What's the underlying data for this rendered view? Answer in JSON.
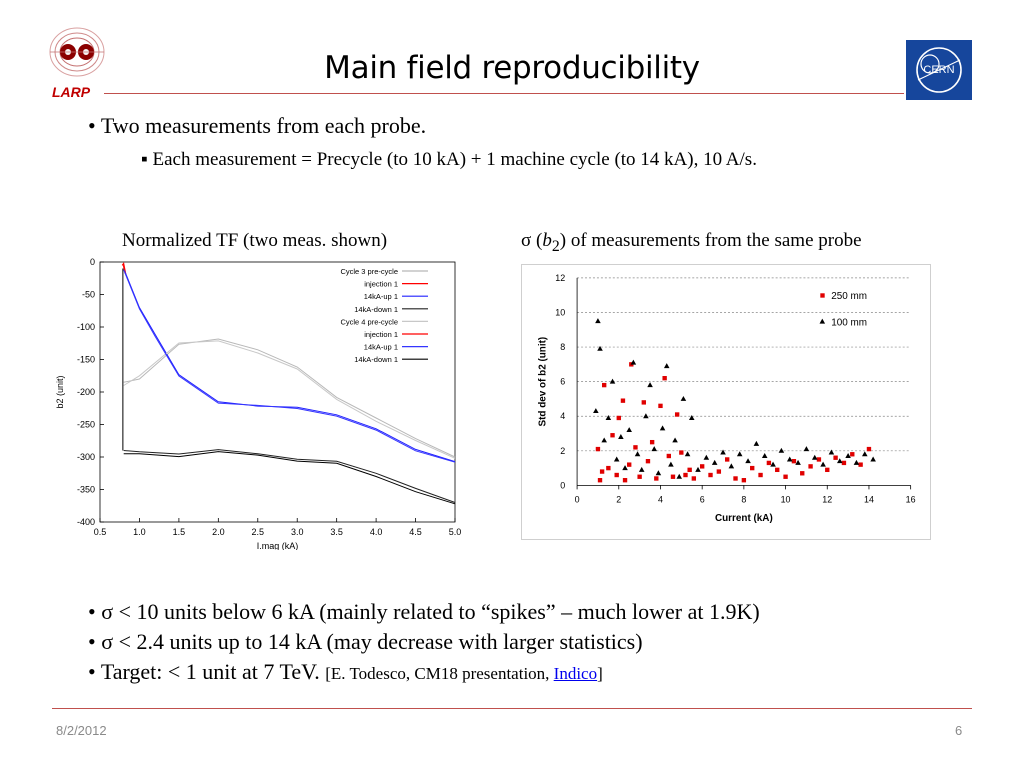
{
  "slide": {
    "title": "Main field reproducibility",
    "logo_text": "LARP",
    "cern_logo_text": "CERN",
    "bullet1": "Two measurements from each probe.",
    "sub_bullet": "Each measurement = Precycle (to 10 kA) + 1 machine cycle (to 14 kA), 10 A/s.",
    "caption_left": "Normalized TF (two meas. shown)",
    "caption_right_prefix": "σ (",
    "caption_right_var": "b",
    "caption_right_sub": "2",
    "caption_right_suffix": ") of measurements from the same probe",
    "bullet2": "σ < 10 units below 6 kA (mainly related to “spikes” – much lower at 1.9K)",
    "bullet3": "σ < 2.4 units up to 14 kA (may decrease with larger statistics)",
    "bullet4": "Target: < 1 unit at 7 TeV. ",
    "ref_prefix": "[E. Todesco, CM18 presentation, ",
    "ref_link": "Indico",
    "ref_suffix": "]",
    "date": "8/2/2012",
    "page_number": "6",
    "colors": {
      "accent_rule": "#c0504d",
      "logo_red": "#c00000",
      "cern_blue": "#16469c"
    }
  },
  "chart_data": [
    {
      "type": "line",
      "xlabel": "I.mag (kA)",
      "ylabel": "b2 (unit)",
      "xlim": [
        0.5,
        5.0
      ],
      "ylim": [
        -400,
        0
      ],
      "xticks": [
        0.5,
        1.0,
        1.5,
        2.0,
        2.5,
        3.0,
        3.5,
        4.0,
        4.5,
        5.0
      ],
      "yticks": [
        0,
        -50,
        -100,
        -150,
        -200,
        -250,
        -300,
        -350,
        -400
      ],
      "legend_position": "top-right",
      "series": [
        {
          "name": "Cycle 3 pre-cycle",
          "color": "#b8b8b8",
          "x": [
            0.8,
            1.0,
            1.5,
            2.0,
            2.5,
            3.0,
            3.5,
            4.0,
            4.5,
            5.0
          ],
          "y": [
            -185,
            -180,
            -130,
            -115,
            -135,
            -165,
            -205,
            -240,
            -275,
            -300
          ]
        },
        {
          "name": "injection 1",
          "color": "#ff0000",
          "x": [
            0.78,
            0.8,
            0.83
          ],
          "y": [
            -5,
            -2,
            -20
          ]
        },
        {
          "name": "14kA-up 1",
          "color": "#2020ff",
          "x": [
            0.8,
            1.0,
            1.2,
            1.5,
            2.0,
            2.5,
            3.0,
            3.5,
            4.0,
            4.5,
            5.0
          ],
          "y": [
            -10,
            -70,
            -115,
            -170,
            -215,
            -225,
            -220,
            -235,
            -260,
            -285,
            -307
          ]
        },
        {
          "name": "14kA-down 1",
          "color": "#222222",
          "x": [
            0.8,
            1.0,
            1.5,
            2.0,
            2.5,
            3.0,
            3.5,
            4.0,
            4.5,
            5.0
          ],
          "y": [
            -290,
            -292,
            -292,
            -292,
            -295,
            -300,
            -310,
            -325,
            -345,
            -370
          ]
        },
        {
          "name": "Cycle 4 pre-cycle",
          "color": "#c8c8c8",
          "x": [
            0.8,
            1.0,
            1.5,
            2.0,
            2.5,
            3.0,
            3.5,
            4.0,
            4.5,
            5.0
          ],
          "y": [
            -190,
            -175,
            -128,
            -118,
            -140,
            -168,
            -208,
            -245,
            -278,
            -302
          ]
        },
        {
          "name": "injection 1",
          "color": "#ff0000",
          "x": [
            0.79,
            0.82
          ],
          "y": [
            -3,
            -18
          ]
        },
        {
          "name": "14kA-up 1",
          "color": "#3535ff",
          "x": [
            0.8,
            1.0,
            1.2,
            1.5,
            2.0,
            2.5,
            3.0,
            3.5,
            4.0,
            4.5,
            5.0
          ],
          "y": [
            -12,
            -72,
            -118,
            -172,
            -217,
            -224,
            -222,
            -237,
            -262,
            -287,
            -308
          ]
        },
        {
          "name": "14kA-down 1",
          "color": "#000000",
          "x": [
            0.8,
            1.0,
            1.5,
            2.0,
            2.5,
            3.0,
            3.5,
            4.0,
            4.5,
            5.0
          ],
          "y": [
            -295,
            -295,
            -296,
            -295,
            -297,
            -303,
            -313,
            -330,
            -350,
            -372
          ]
        }
      ]
    },
    {
      "type": "scatter",
      "xlabel": "Current (kA)",
      "ylabel": "Std dev of b2 (unit)",
      "xlim": [
        0,
        16
      ],
      "ylim": [
        0,
        12
      ],
      "xticks": [
        0,
        2,
        4,
        6,
        8,
        10,
        12,
        14,
        16
      ],
      "yticks": [
        0,
        2,
        4,
        6,
        8,
        10,
        12
      ],
      "grid": true,
      "legend_position": "top-right",
      "series": [
        {
          "name": "250 mm",
          "marker": "square",
          "color": "#e00000",
          "x": [
            1.0,
            1.1,
            1.2,
            1.3,
            1.5,
            1.7,
            1.9,
            2.0,
            2.2,
            2.3,
            2.5,
            2.6,
            2.8,
            3.0,
            3.2,
            3.4,
            3.6,
            3.8,
            4.0,
            4.2,
            4.4,
            4.6,
            4.8,
            5.0,
            5.2,
            5.4,
            5.6,
            6.0,
            6.4,
            6.8,
            7.2,
            7.6,
            8.0,
            8.4,
            8.8,
            9.2,
            9.6,
            10.0,
            10.4,
            10.8,
            11.2,
            11.6,
            12.0,
            12.4,
            12.8,
            13.2,
            13.6,
            14.0
          ],
          "y": [
            2.1,
            0.3,
            0.8,
            5.8,
            1.0,
            2.9,
            0.6,
            3.9,
            4.9,
            0.3,
            1.2,
            7.0,
            2.2,
            0.5,
            4.8,
            1.4,
            2.5,
            0.4,
            4.6,
            6.2,
            1.7,
            0.5,
            4.1,
            1.9,
            0.6,
            0.9,
            0.4,
            1.1,
            0.6,
            0.8,
            1.5,
            0.4,
            0.3,
            1.0,
            0.6,
            1.3,
            0.9,
            0.5,
            1.4,
            0.7,
            1.1,
            1.5,
            0.9,
            1.6,
            1.3,
            1.8,
            1.2,
            2.1
          ]
        },
        {
          "name": "100 mm",
          "marker": "triangle",
          "color": "#000000",
          "x": [
            0.9,
            1.0,
            1.1,
            1.3,
            1.5,
            1.7,
            1.9,
            2.1,
            2.3,
            2.5,
            2.7,
            2.9,
            3.1,
            3.3,
            3.5,
            3.7,
            3.9,
            4.1,
            4.3,
            4.5,
            4.7,
            4.9,
            5.1,
            5.3,
            5.5,
            5.8,
            6.2,
            6.6,
            7.0,
            7.4,
            7.8,
            8.2,
            8.6,
            9.0,
            9.4,
            9.8,
            10.2,
            10.6,
            11.0,
            11.4,
            11.8,
            12.2,
            12.6,
            13.0,
            13.4,
            13.8,
            14.2
          ],
          "y": [
            4.3,
            9.5,
            7.9,
            2.6,
            3.9,
            6.0,
            1.5,
            2.8,
            1.0,
            3.2,
            7.1,
            1.8,
            0.9,
            4.0,
            5.8,
            2.1,
            0.7,
            3.3,
            6.9,
            1.2,
            2.6,
            0.5,
            5.0,
            1.8,
            3.9,
            0.9,
            1.6,
            1.3,
            1.9,
            1.1,
            1.8,
            1.4,
            2.4,
            1.7,
            1.2,
            2.0,
            1.5,
            1.3,
            2.1,
            1.6,
            1.2,
            1.9,
            1.4,
            1.7,
            1.3,
            1.8,
            1.5
          ]
        }
      ]
    }
  ]
}
